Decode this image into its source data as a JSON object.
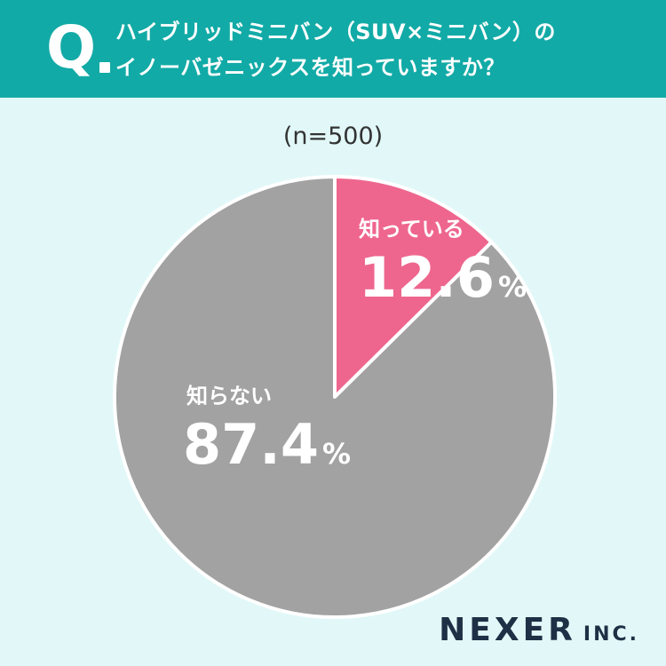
{
  "header": {
    "q": "Q",
    "line1": "ハイブリッドミニバン（SUV×ミニバン）の",
    "line2": "イノーバゼニックスを知っていますか？"
  },
  "sample_label": "(n=500)",
  "chart_data": {
    "type": "pie",
    "slices": [
      {
        "label": "知っている",
        "value": 12.6,
        "color": "#ee668e"
      },
      {
        "label": "知らない",
        "value": 87.4,
        "color": "#a2a2a2"
      }
    ],
    "unit": "%",
    "start": "top",
    "direction": "clockwise"
  },
  "labels": {
    "slice0_name": "知っている",
    "slice0_value": "12.6",
    "slice1_name": "知らない",
    "slice1_value": "87.4",
    "unit": "%"
  },
  "logo": {
    "main": "NEXER",
    "sub": "INC."
  }
}
